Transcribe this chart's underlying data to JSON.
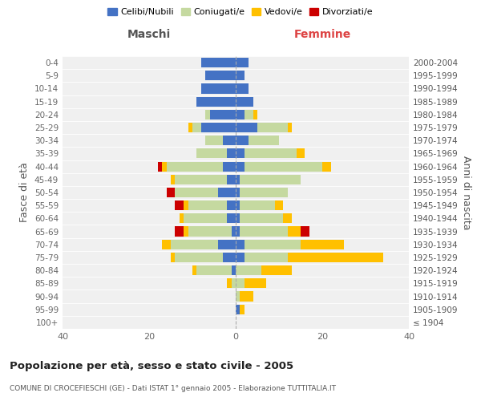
{
  "age_groups": [
    "100+",
    "95-99",
    "90-94",
    "85-89",
    "80-84",
    "75-79",
    "70-74",
    "65-69",
    "60-64",
    "55-59",
    "50-54",
    "45-49",
    "40-44",
    "35-39",
    "30-34",
    "25-29",
    "20-24",
    "15-19",
    "10-14",
    "5-9",
    "0-4"
  ],
  "birth_years": [
    "≤ 1904",
    "1905-1909",
    "1910-1914",
    "1915-1919",
    "1920-1924",
    "1925-1929",
    "1930-1934",
    "1935-1939",
    "1940-1944",
    "1945-1949",
    "1950-1954",
    "1955-1959",
    "1960-1964",
    "1965-1969",
    "1970-1974",
    "1975-1979",
    "1980-1984",
    "1985-1989",
    "1990-1994",
    "1995-1999",
    "2000-2004"
  ],
  "maschi": {
    "celibi": [
      0,
      0,
      0,
      0,
      1,
      3,
      4,
      1,
      2,
      2,
      4,
      2,
      3,
      2,
      3,
      8,
      6,
      9,
      8,
      7,
      8
    ],
    "coniugati": [
      0,
      0,
      0,
      1,
      8,
      11,
      11,
      10,
      10,
      9,
      10,
      12,
      13,
      7,
      4,
      2,
      1,
      0,
      0,
      0,
      0
    ],
    "vedovi": [
      0,
      0,
      0,
      1,
      1,
      1,
      2,
      1,
      1,
      1,
      0,
      1,
      1,
      0,
      0,
      1,
      0,
      0,
      0,
      0,
      0
    ],
    "divorziati": [
      0,
      0,
      0,
      0,
      0,
      0,
      0,
      2,
      0,
      2,
      2,
      0,
      1,
      0,
      0,
      0,
      0,
      0,
      0,
      0,
      0
    ]
  },
  "femmine": {
    "nubili": [
      0,
      1,
      0,
      0,
      0,
      2,
      2,
      1,
      1,
      1,
      1,
      1,
      2,
      2,
      3,
      5,
      2,
      4,
      3,
      2,
      3
    ],
    "coniugate": [
      0,
      0,
      1,
      2,
      6,
      10,
      13,
      11,
      10,
      8,
      11,
      14,
      18,
      12,
      7,
      7,
      2,
      0,
      0,
      0,
      0
    ],
    "vedove": [
      0,
      1,
      3,
      5,
      7,
      22,
      10,
      3,
      2,
      2,
      0,
      0,
      2,
      2,
      0,
      1,
      1,
      0,
      0,
      0,
      0
    ],
    "divorziate": [
      0,
      0,
      0,
      0,
      0,
      0,
      0,
      2,
      0,
      0,
      0,
      0,
      0,
      0,
      0,
      0,
      0,
      0,
      0,
      0,
      0
    ]
  },
  "colors": {
    "celibi_nubili": "#4472c4",
    "coniugati": "#c5d9a0",
    "vedovi": "#ffc000",
    "divorziati": "#cc0000"
  },
  "title": "Popolazione per età, sesso e stato civile - 2005",
  "subtitle": "COMUNE DI CROCEFIESCHI (GE) - Dati ISTAT 1° gennaio 2005 - Elaborazione TUTTITALIA.IT",
  "xlabel_left": "Maschi",
  "xlabel_right": "Femmine",
  "ylabel_left": "Fasce di età",
  "ylabel_right": "Anni di nascita",
  "xlim": 40,
  "legend_labels": [
    "Celibi/Nubili",
    "Coniugati/e",
    "Vedovi/e",
    "Divorziati/e"
  ],
  "background_color": "#f0f0f0"
}
